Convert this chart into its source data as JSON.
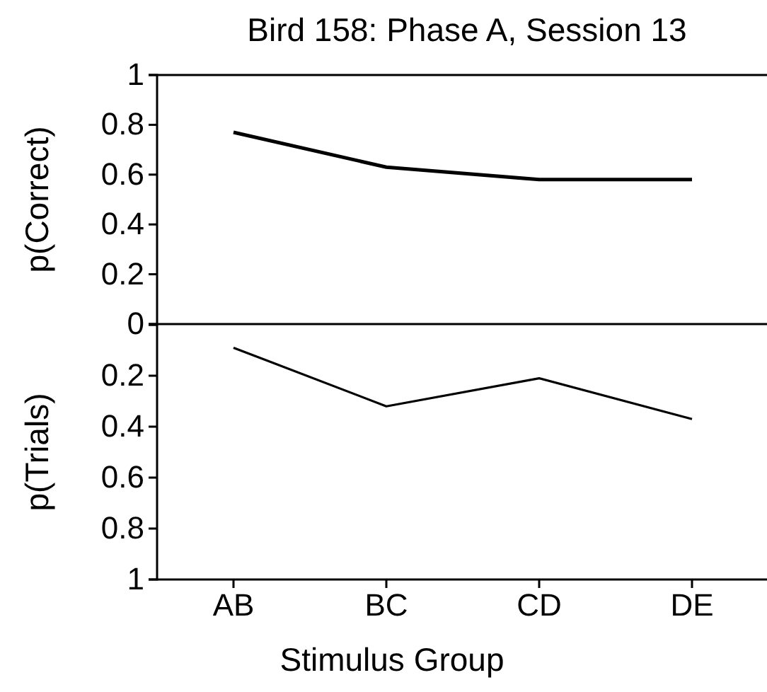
{
  "chart_data": [
    {
      "type": "line",
      "title": "Bird 158:  Phase A, Session 13",
      "ylabel": "p(Correct)",
      "categories": [
        null,
        null,
        null,
        null
      ],
      "values": [
        0.77,
        0.63,
        0.58,
        0.58
      ],
      "color": "#000000",
      "ylim": [
        0,
        1
      ],
      "yticks": [
        0,
        0.2,
        0.4,
        0.6,
        0.8,
        1
      ],
      "tick_labels": "y",
      "grid": false
    },
    {
      "type": "line",
      "ylabel": "p(Trials)",
      "xlabel": "Stimulus Group",
      "categories": [
        "AB",
        "BC",
        "CD",
        "DE"
      ],
      "values": [
        0.09,
        0.32,
        0.21,
        0.37
      ],
      "color": "#000000",
      "ylim": [
        1,
        0
      ],
      "yticks": [
        {
          "value": 0,
          "label": null
        },
        0.2,
        0.4,
        0.6,
        0.8,
        1
      ],
      "grid": false
    }
  ]
}
